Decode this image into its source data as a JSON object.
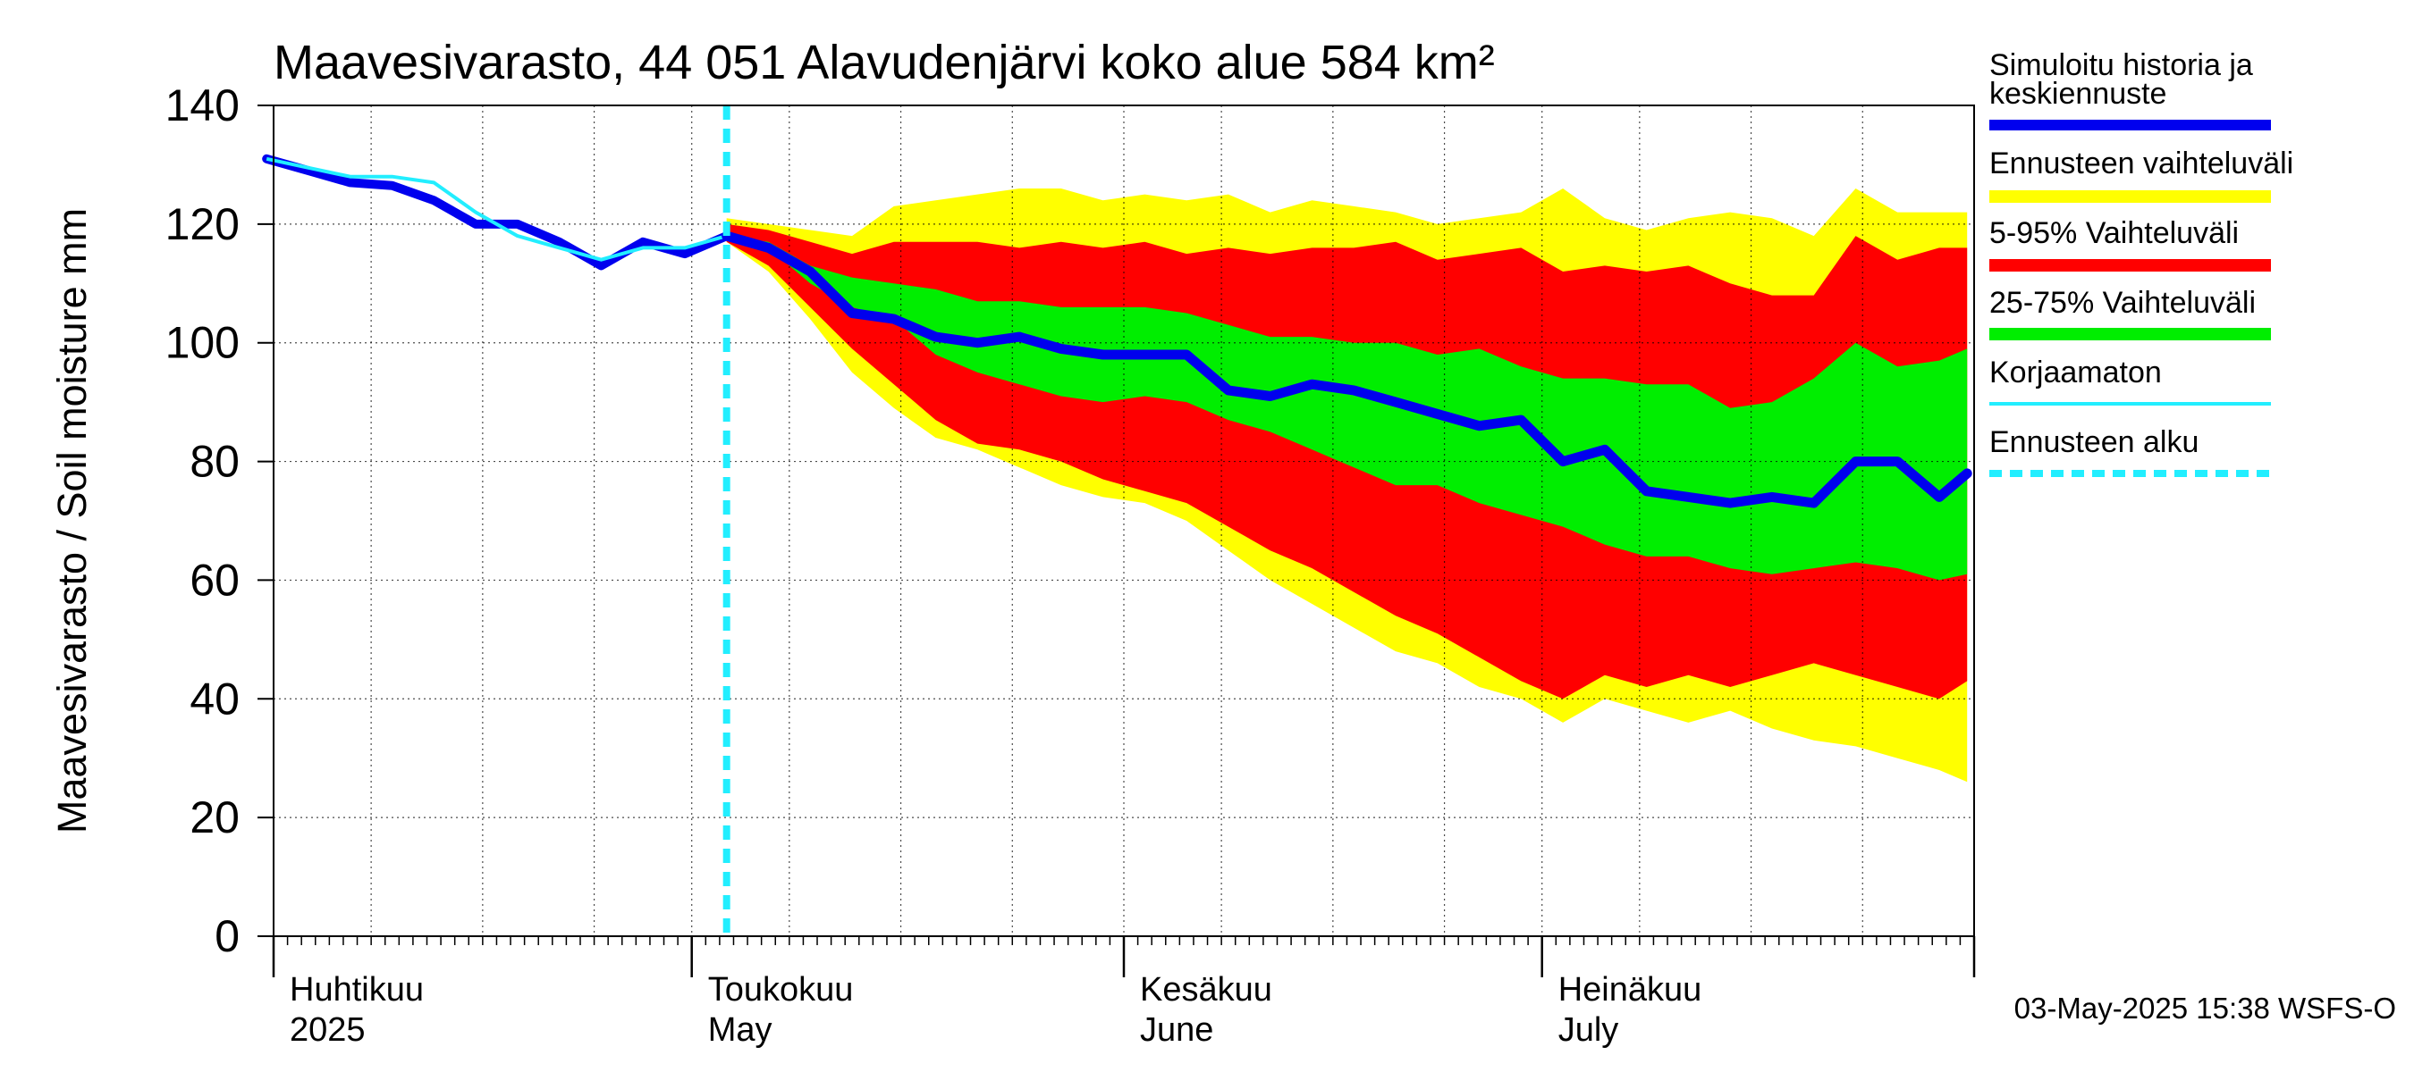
{
  "chart_data": {
    "type": "area",
    "title": "Maavesivarasto, 44 051 Alavudenjärvi koko alue 584 km²",
    "ylabel": "Maavesivarasto / Soil moisture   mm",
    "ylim": [
      0,
      140
    ],
    "y_ticks": [
      "0",
      "20",
      "40",
      "60",
      "80",
      "100",
      "120",
      "140"
    ],
    "x_start": "2025-04-01",
    "x_end": "2025-07-31",
    "months": [
      {
        "date": "2025-04-01",
        "line1": "Huhtikuu",
        "line2": "2025"
      },
      {
        "date": "2025-05-01",
        "line1": "Toukokuu",
        "line2": "May"
      },
      {
        "date": "2025-06-01",
        "line1": "Kesäkuu",
        "line2": "June"
      },
      {
        "date": "2025-07-01",
        "line1": "Heinäkuu",
        "line2": "July"
      }
    ],
    "grid": true,
    "forecast_start": "2025-05-03",
    "colors": {
      "history": "#0000ee",
      "uncorrected": "#22eeff",
      "range_full": "#ffff00",
      "range_5_95": "#ff0000",
      "range_25_75": "#00ee00",
      "forecast_start": "#22eeff"
    },
    "history": {
      "x": [
        "2025-03-31",
        "2025-04-03",
        "2025-04-06",
        "2025-04-09",
        "2025-04-12",
        "2025-04-15",
        "2025-04-18",
        "2025-04-21",
        "2025-04-24",
        "2025-04-27",
        "2025-04-30",
        "2025-05-03"
      ],
      "y": [
        131,
        129,
        127,
        126.5,
        124,
        120,
        120,
        117,
        113,
        117,
        115,
        118
      ]
    },
    "uncorrected": {
      "x": [
        "2025-03-31",
        "2025-04-03",
        "2025-04-06",
        "2025-04-09",
        "2025-04-12",
        "2025-04-15",
        "2025-04-18",
        "2025-04-21",
        "2025-04-24",
        "2025-04-27",
        "2025-04-30",
        "2025-05-03"
      ],
      "y": [
        131,
        129.5,
        128,
        128,
        127,
        122,
        118,
        116,
        114,
        116,
        116,
        118
      ]
    },
    "forecast": {
      "x": [
        "2025-05-03",
        "2025-05-06",
        "2025-05-09",
        "2025-05-12",
        "2025-05-15",
        "2025-05-18",
        "2025-05-21",
        "2025-05-24",
        "2025-05-27",
        "2025-05-30",
        "2025-06-02",
        "2025-06-05",
        "2025-06-08",
        "2025-06-11",
        "2025-06-14",
        "2025-06-17",
        "2025-06-20",
        "2025-06-23",
        "2025-06-26",
        "2025-06-29",
        "2025-07-02",
        "2025-07-05",
        "2025-07-08",
        "2025-07-11",
        "2025-07-14",
        "2025-07-17",
        "2025-07-20",
        "2025-07-23",
        "2025-07-26",
        "2025-07-29",
        "2025-07-31"
      ],
      "median": [
        118,
        116,
        112,
        105,
        104,
        101,
        100,
        101,
        99,
        98,
        98,
        98,
        92,
        91,
        93,
        92,
        90,
        88,
        86,
        87,
        80,
        82,
        75,
        74,
        73,
        74,
        73,
        80,
        80,
        74,
        78
      ],
      "p5": [
        117,
        113,
        106,
        99,
        93,
        87,
        83,
        82,
        80,
        77,
        75,
        73,
        69,
        65,
        62,
        58,
        54,
        51,
        47,
        43,
        40,
        44,
        42,
        44,
        42,
        44,
        46,
        44,
        42,
        40,
        43
      ],
      "p95": [
        120,
        119,
        117,
        115,
        117,
        117,
        117,
        116,
        117,
        116,
        117,
        115,
        116,
        115,
        116,
        116,
        117,
        114,
        115,
        116,
        112,
        113,
        112,
        113,
        110,
        108,
        108,
        118,
        114,
        116,
        116
      ],
      "p25": [
        118,
        116,
        110,
        106,
        104,
        98,
        95,
        93,
        91,
        90,
        91,
        90,
        87,
        85,
        82,
        79,
        76,
        76,
        73,
        71,
        69,
        66,
        64,
        64,
        62,
        61,
        62,
        63,
        62,
        60,
        61
      ],
      "p75": [
        118,
        117,
        113,
        111,
        110,
        109,
        107,
        107,
        106,
        106,
        106,
        105,
        103,
        101,
        101,
        100,
        100,
        98,
        99,
        96,
        94,
        94,
        93,
        93,
        89,
        90,
        94,
        100,
        96,
        97,
        99
      ],
      "min": [
        117,
        112,
        104,
        95,
        89,
        84,
        82,
        79,
        76,
        74,
        73,
        70,
        65,
        60,
        56,
        52,
        48,
        46,
        42,
        40,
        36,
        40,
        38,
        36,
        38,
        35,
        33,
        32,
        30,
        28,
        26
      ],
      "max": [
        121,
        120,
        119,
        118,
        123,
        124,
        125,
        126,
        126,
        124,
        125,
        124,
        125,
        122,
        124,
        123,
        122,
        120,
        121,
        122,
        126,
        121,
        119,
        121,
        122,
        121,
        118,
        126,
        122,
        122,
        122
      ]
    },
    "legend": [
      {
        "label1": "Simuloitu historia ja",
        "label2": "keskiennuste",
        "style": "history"
      },
      {
        "label1": "Ennusteen vaihteluväli",
        "label2": "",
        "style": "range_full"
      },
      {
        "label1": "5-95% Vaihteluväli",
        "label2": "",
        "style": "range_5_95"
      },
      {
        "label1": "25-75% Vaihteluväli",
        "label2": "",
        "style": "range_25_75"
      },
      {
        "label1": "Korjaamaton",
        "label2": "",
        "style": "uncorrected"
      },
      {
        "label1": "Ennusteen alku",
        "label2": "",
        "style": "forecast_start"
      }
    ],
    "legend_position": "right",
    "timestamp": "03-May-2025 15:38 WSFS-O"
  }
}
